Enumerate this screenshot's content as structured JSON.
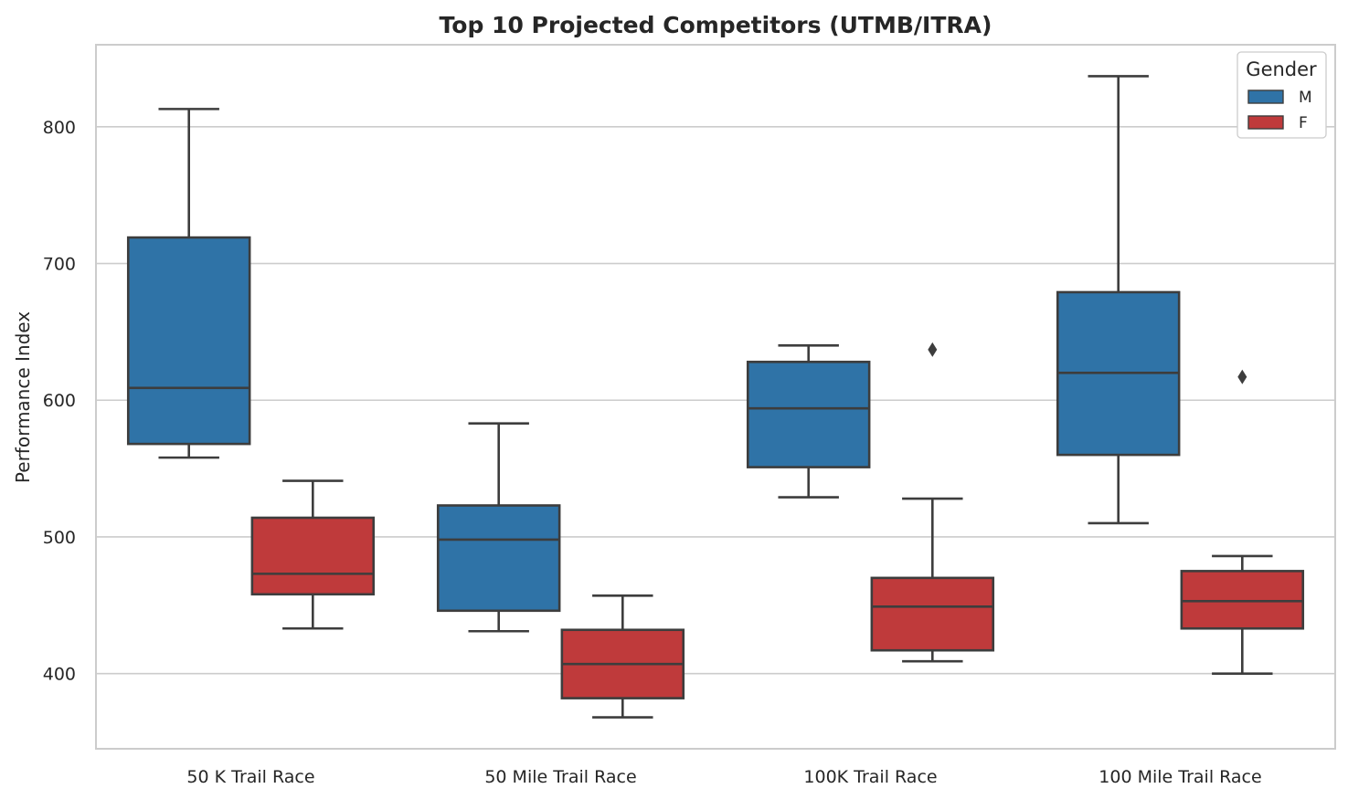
{
  "chart_data": {
    "type": "box",
    "title": "Top 10 Projected Competitors (UTMB/ITRA)",
    "xlabel": "",
    "ylabel": "Performance Index",
    "ylim": [
      345,
      860
    ],
    "yticks": [
      400,
      500,
      600,
      700,
      800
    ],
    "grid": true,
    "categories": [
      "50 K Trail Race",
      "50 Mile Trail Race",
      "100K Trail Race",
      "100 Mile Trail Race"
    ],
    "legend": {
      "title": "Gender",
      "position": "top-right"
    },
    "series": [
      {
        "name": "M",
        "color": "#2f73a7",
        "boxes": [
          {
            "whisker_low": 558,
            "q1": 568,
            "median": 609,
            "q3": 719,
            "whisker_high": 813,
            "outliers": []
          },
          {
            "whisker_low": 431,
            "q1": 446,
            "median": 498,
            "q3": 523,
            "whisker_high": 583,
            "outliers": []
          },
          {
            "whisker_low": 529,
            "q1": 551,
            "median": 594,
            "q3": 628,
            "whisker_high": 640,
            "outliers": []
          },
          {
            "whisker_low": 510,
            "q1": 560,
            "median": 620,
            "q3": 679,
            "whisker_high": 837,
            "outliers": []
          }
        ]
      },
      {
        "name": "F",
        "color": "#bf3a3b",
        "boxes": [
          {
            "whisker_low": 433,
            "q1": 458,
            "median": 473,
            "q3": 514,
            "whisker_high": 541,
            "outliers": []
          },
          {
            "whisker_low": 368,
            "q1": 382,
            "median": 407,
            "q3": 432,
            "whisker_high": 457,
            "outliers": []
          },
          {
            "whisker_low": 409,
            "q1": 417,
            "median": 449,
            "q3": 470,
            "whisker_high": 528,
            "outliers": [
              637
            ]
          },
          {
            "whisker_low": 400,
            "q1": 433,
            "median": 453,
            "q3": 475,
            "whisker_high": 486,
            "outliers": [
              617
            ]
          }
        ]
      }
    ]
  }
}
